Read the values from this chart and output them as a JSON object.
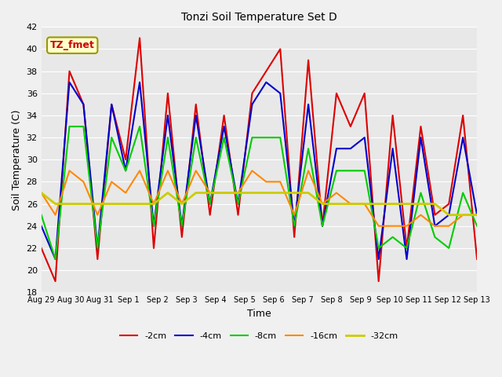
{
  "title": "Tonzi Soil Temperature Set D",
  "xlabel": "Time",
  "ylabel": "Soil Temperature (C)",
  "ylim": [
    18,
    42
  ],
  "annotation": "TZ_fmet",
  "fig_bg": "#f0f0f0",
  "axes_bg": "#e8e8e8",
  "grid_color": "#ffffff",
  "legend": [
    "-2cm",
    "-4cm",
    "-8cm",
    "-16cm",
    "-32cm"
  ],
  "line_colors": [
    "#dd0000",
    "#0000cc",
    "#00cc00",
    "#ff8800",
    "#cccc00"
  ],
  "line_widths": [
    1.5,
    1.5,
    1.5,
    1.5,
    2.0
  ],
  "x_labels": [
    "Aug 29",
    "Aug 30",
    "Aug 31",
    "Sep 1",
    "Sep 2",
    "Sep 3",
    "Sep 4",
    "Sep 5",
    "Sep 6",
    "Sep 7",
    "Sep 8",
    "Sep 9",
    "Sep 10",
    "Sep 11",
    "Sep 12",
    "Sep 13"
  ],
  "x_tick_pos": [
    0,
    2,
    4,
    6,
    8,
    10,
    12,
    14,
    16,
    18,
    20,
    22,
    24,
    26,
    28,
    30
  ],
  "data_2cm": [
    22,
    19,
    38,
    35,
    21,
    35,
    30,
    41,
    22,
    36,
    23,
    35,
    25,
    34,
    25,
    36,
    38,
    40,
    23,
    39,
    24,
    36,
    33,
    36,
    19,
    34,
    22,
    33,
    25,
    26,
    34,
    21
  ],
  "data_4cm": [
    24,
    21,
    37,
    35,
    22,
    35,
    29,
    37,
    24,
    34,
    24,
    34,
    26,
    33,
    26,
    35,
    37,
    36,
    24,
    35,
    24,
    31,
    31,
    32,
    21,
    31,
    21,
    32,
    24,
    25,
    32,
    25
  ],
  "data_8cm": [
    25,
    21,
    33,
    33,
    22,
    32,
    29,
    33,
    24,
    32,
    24,
    32,
    26,
    32,
    26,
    32,
    32,
    32,
    24,
    31,
    24,
    29,
    29,
    29,
    22,
    23,
    22,
    27,
    23,
    22,
    27,
    24
  ],
  "data_16cm": [
    27,
    25,
    29,
    28,
    25,
    28,
    27,
    29,
    26,
    29,
    26,
    29,
    27,
    27,
    27,
    29,
    28,
    28,
    25,
    29,
    26,
    27,
    26,
    26,
    24,
    24,
    24,
    25,
    24,
    24,
    25,
    25
  ],
  "data_32cm": [
    27,
    26,
    26,
    26,
    26,
    26,
    26,
    26,
    26,
    27,
    26,
    27,
    27,
    27,
    27,
    27,
    27,
    27,
    27,
    27,
    26,
    26,
    26,
    26,
    26,
    26,
    26,
    26,
    26,
    25,
    25,
    25
  ]
}
